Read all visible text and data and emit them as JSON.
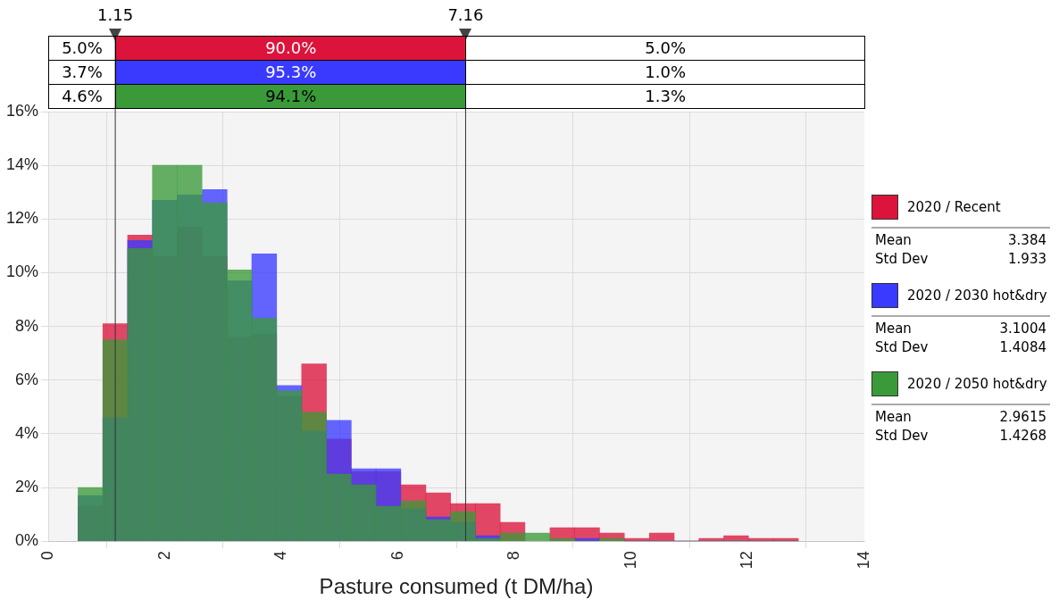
{
  "chart_data": {
    "type": "histogram",
    "xlabel": "Pasture consumed (t DM/ha)",
    "bins": [
      0.51,
      0.94,
      1.36,
      1.79,
      2.21,
      2.64,
      3.07,
      3.49,
      3.92,
      4.35,
      4.77,
      5.2,
      5.62,
      6.05,
      6.48,
      6.9,
      7.33,
      7.75,
      8.18,
      8.61,
      9.03,
      9.46,
      9.88,
      10.31,
      10.74,
      11.16,
      11.59,
      12.01,
      12.44,
      12.87
    ],
    "series": [
      {
        "name": "2020 / Recent",
        "color": "#dc143c",
        "values": [
          1.3,
          8.1,
          11.4,
          10.6,
          11.7,
          10.6,
          7.6,
          7.7,
          5.4,
          6.6,
          3.8,
          2.6,
          2.6,
          2.1,
          1.8,
          1.4,
          1.4,
          0.7,
          null,
          0.5,
          0.5,
          0.3,
          0.1,
          0.3,
          0,
          0.1,
          0.2,
          0.1,
          0.1
        ]
      },
      {
        "name": "2020 / 2030 hot&dry",
        "color": "#3a3aff",
        "values": [
          1.7,
          4.6,
          11.2,
          12.7,
          12.9,
          13.1,
          9.7,
          10.7,
          5.8,
          4.1,
          4.5,
          2.7,
          2.7,
          1.2,
          0.9,
          0.7,
          0.2,
          null,
          null,
          null,
          0.1,
          null,
          0,
          0,
          0,
          0,
          0,
          0,
          0
        ]
      },
      {
        "name": "2020 / 2050 hot&dry",
        "color": "#3a9a3a",
        "values": [
          2.0,
          7.5,
          10.9,
          14.0,
          14.0,
          12.6,
          10.1,
          8.3,
          5.6,
          4.8,
          2.5,
          2.1,
          1.3,
          1.5,
          0.8,
          1.1,
          0.1,
          0.3,
          0.3,
          0.1,
          0,
          0.1,
          0,
          0,
          0,
          0,
          0,
          0,
          0
        ]
      }
    ],
    "xlim": [
      0,
      14
    ],
    "xticks": [
      0,
      2,
      4,
      6,
      8,
      10,
      12,
      14
    ],
    "ylim": [
      0,
      16
    ],
    "yticks": [
      {
        "value": 0,
        "label": "0%"
      },
      {
        "value": 2,
        "label": "2%"
      },
      {
        "value": 4,
        "label": "4%"
      },
      {
        "value": 6,
        "label": "6%"
      },
      {
        "value": 8,
        "label": "8%"
      },
      {
        "value": 10,
        "label": "10%"
      },
      {
        "value": 12,
        "label": "12%"
      },
      {
        "value": 14,
        "label": "14%"
      },
      {
        "value": 16,
        "label": "16%"
      }
    ],
    "ref_lines": [
      {
        "axis": "x",
        "value": 1.15,
        "label": "1.15"
      },
      {
        "axis": "x",
        "value": 7.16,
        "label": "7.16"
      }
    ],
    "annotations": [
      "5.0%",
      "90.0%",
      "5.0%",
      "3.7%",
      "95.3%",
      "1.0%",
      "4.6%",
      "94.1%",
      "1.3%",
      "Mean",
      "3.384",
      "Std Dev",
      "1.933",
      "Mean",
      "3.1004",
      "Std Dev",
      "1.4084",
      "Mean",
      "2.9615",
      "Std Dev",
      "1.4268"
    ],
    "grid": true,
    "legend": "right"
  }
}
